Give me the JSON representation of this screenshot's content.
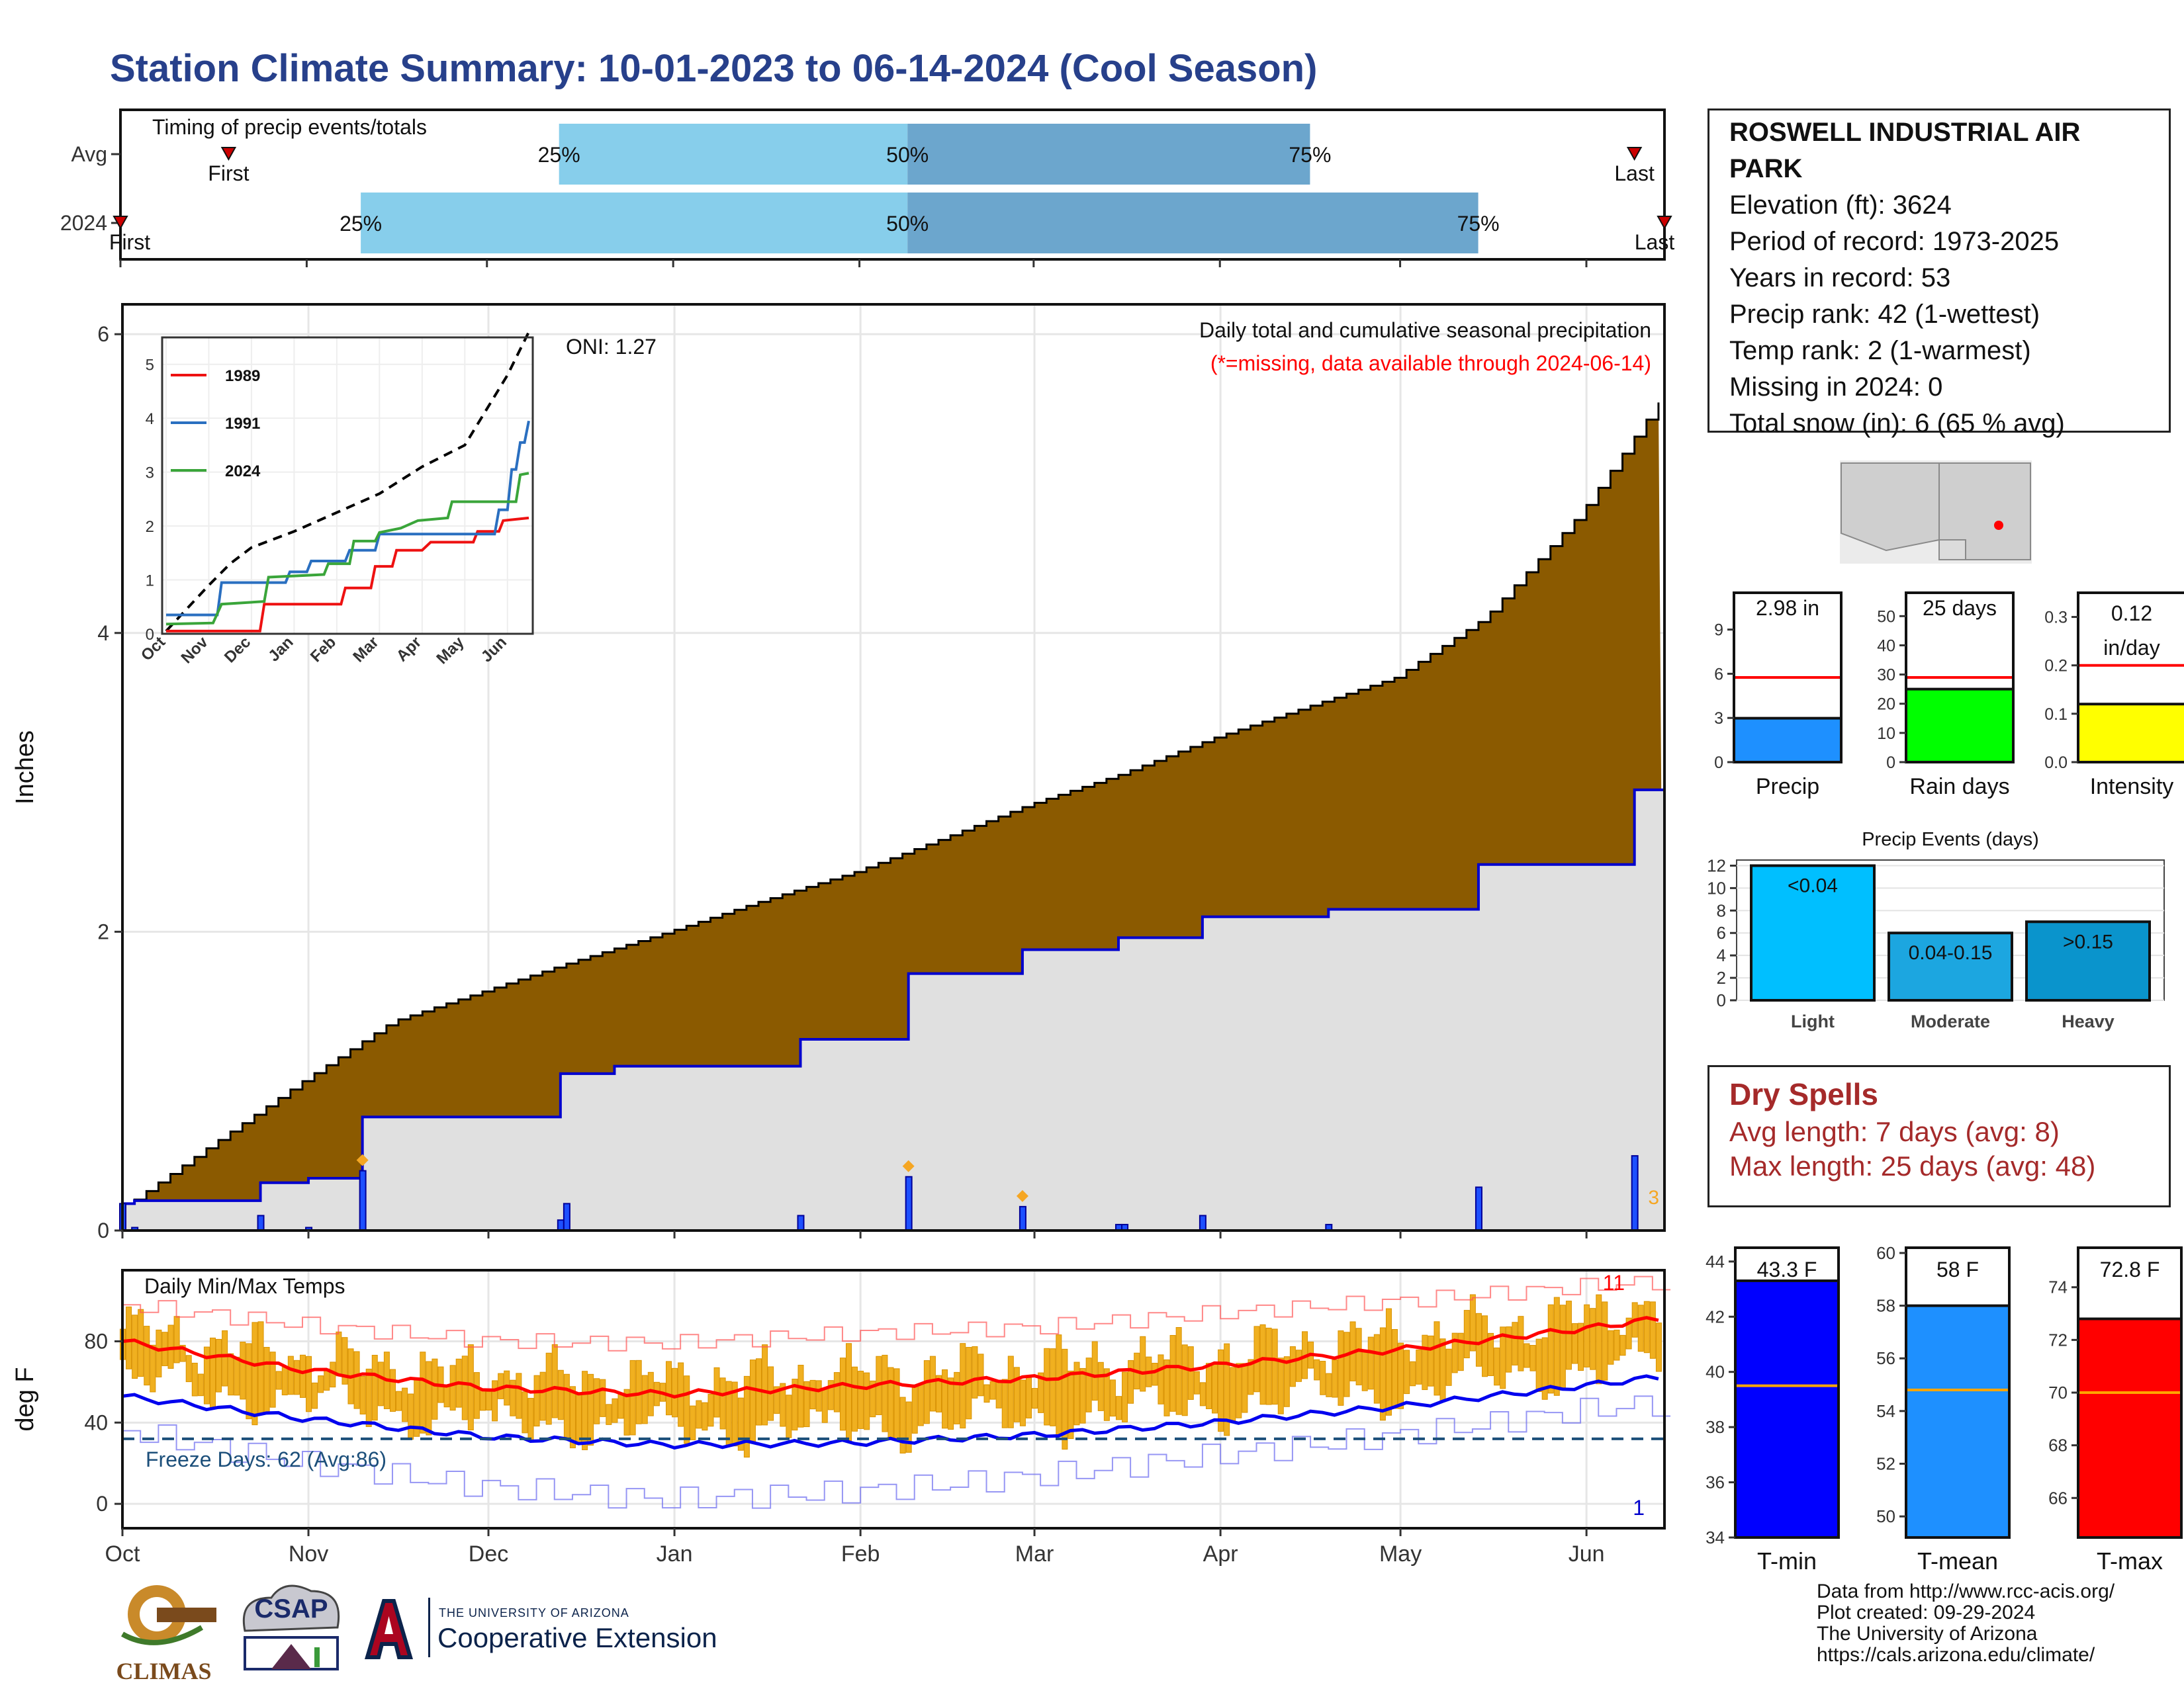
{
  "title": "Station Climate Summary: 10-01-2023 to 06-14-2024 (Cool Season)",
  "station": {
    "name": "ROSWELL INDUSTRIAL AIR PARK",
    "lines": [
      "Elevation (ft): 3624",
      "Period of record: 1973-2025",
      "Years in record: 53",
      "Precip rank: 42 (1-wettest)",
      "Temp rank: 2 (1-warmest)",
      "Missing in 2024: 0",
      "Total snow (in): 6 (65 % avg)"
    ]
  },
  "dry_spells": {
    "heading": "Dry Spells",
    "avg": "Avg length: 7 days (avg: 8)",
    "max": "Max length: 25 days (avg: 48)"
  },
  "credits": [
    "Data from http://www.rcc-acis.org/",
    "Plot created: 09-29-2024",
    "The University of Arizona",
    "https://cals.arizona.edu/climate/"
  ],
  "logos": {
    "climas": "CLIMAS",
    "csap": "CSAP",
    "ua_small": "THE UNIVERSITY OF ARIZONA",
    "ua_big": "Cooperative Extension"
  },
  "colors": {
    "title": "#27408b",
    "cum_avg_fill": "#8b5a00",
    "cum_2024_line": "#0000cd",
    "cum_2024_fill": "#e0e0e0",
    "daily_precip": "#1e50ff",
    "temp_bar": "#f0b020",
    "avg_max": "#ff0000",
    "avg_min": "#0000ee",
    "dry_spells": "#a52a2a",
    "timing_light": "#87ceeb",
    "timing_dark": "#6ca6cd"
  },
  "chart_data": [
    {
      "id": "timing",
      "type": "bar",
      "title": "Timing of precip events/totals",
      "rows": [
        {
          "label": "Avg",
          "first_date": "2023-10-19",
          "p25_date": "2023-12-13",
          "p50_date": "2024-02-09",
          "p75_date": "2024-04-16",
          "last_date": "2024-06-09"
        },
        {
          "label": "2024",
          "first_date": "2023-10-01",
          "p25_date": "2023-11-10",
          "p50_date": "2024-02-09",
          "p75_date": "2024-05-14",
          "last_date": "2024-06-14"
        }
      ],
      "marker_labels": {
        "first": "First",
        "last": "Last",
        "p25": "25%",
        "p50": "50%",
        "p75": "75%"
      }
    },
    {
      "id": "precip",
      "type": "area",
      "title": "Daily total and cumulative seasonal precipitation",
      "subtitle": "(*=missing, data available through 2024-06-14)",
      "ylabel": "Inches",
      "ylim": [
        0,
        6.2
      ],
      "yticks": [
        0,
        2,
        4,
        6
      ],
      "xlim": [
        "2023-10-01",
        "2024-06-14"
      ],
      "x_tick_labels": [
        "Oct",
        "Nov",
        "Dec",
        "Jan",
        "Feb",
        "Mar",
        "Apr",
        "May",
        "Jun"
      ],
      "oni": "ONI: 1.27",
      "corner_label": "3",
      "cumulative_avg": {
        "x": [
          "2023-10-01",
          "2023-10-15",
          "2023-10-31",
          "2023-11-15",
          "2023-11-30",
          "2023-12-15",
          "2023-12-31",
          "2024-01-15",
          "2024-01-31",
          "2024-02-15",
          "2024-02-29",
          "2024-03-15",
          "2024-03-31",
          "2024-04-15",
          "2024-04-30",
          "2024-05-15",
          "2024-05-31",
          "2024-06-14"
        ],
        "y": [
          0.15,
          0.55,
          1.0,
          1.4,
          1.6,
          1.8,
          2.0,
          2.2,
          2.4,
          2.63,
          2.85,
          3.05,
          3.3,
          3.5,
          3.7,
          4.1,
          4.8,
          5.6
        ]
      },
      "cumulative_2024": {
        "x": [
          "2023-10-01",
          "2023-10-03",
          "2023-10-24",
          "2023-11-01",
          "2023-11-10",
          "2023-12-13",
          "2023-12-22",
          "2024-01-22",
          "2024-02-09",
          "2024-02-28",
          "2024-03-15",
          "2024-03-29",
          "2024-04-19",
          "2024-05-14",
          "2024-06-09",
          "2024-06-14"
        ],
        "y": [
          0.18,
          0.2,
          0.32,
          0.35,
          0.76,
          1.05,
          1.1,
          1.28,
          1.72,
          1.88,
          1.96,
          2.1,
          2.15,
          2.45,
          2.95,
          2.98
        ]
      },
      "daily_2024": {
        "x": [
          "2023-10-01",
          "2023-10-03",
          "2023-10-24",
          "2023-11-01",
          "2023-11-10",
          "2023-12-13",
          "2023-12-14",
          "2024-01-22",
          "2024-02-09",
          "2024-02-28",
          "2024-03-15",
          "2024-03-16",
          "2024-03-29",
          "2024-04-19",
          "2024-05-14",
          "2024-06-09"
        ],
        "y": [
          0.18,
          0.02,
          0.1,
          0.02,
          0.4,
          0.07,
          0.18,
          0.1,
          0.36,
          0.16,
          0.04,
          0.04,
          0.1,
          0.04,
          0.29,
          0.5
        ]
      },
      "trace_days": [
        "2023-11-10",
        "2024-02-09",
        "2024-02-28"
      ],
      "inset": {
        "type": "line",
        "ylim": [
          0,
          5.5
        ],
        "yticks": [
          0,
          1,
          2,
          3,
          4,
          5
        ],
        "x_tick_labels": [
          "Oct",
          "Nov",
          "Dec",
          "Jan",
          "Feb",
          "Mar",
          "Apr",
          "May",
          "Jun"
        ],
        "series": [
          {
            "name": "1989",
            "color": "#ee1111",
            "points": [
              [
                0,
                0.05
              ],
              [
                2.2,
                0.05
              ],
              [
                2.3,
                0.55
              ],
              [
                4.1,
                0.55
              ],
              [
                4.2,
                0.85
              ],
              [
                4.8,
                0.85
              ],
              [
                4.9,
                1.25
              ],
              [
                5.3,
                1.25
              ],
              [
                5.4,
                1.55
              ],
              [
                6.0,
                1.55
              ],
              [
                6.2,
                1.7
              ],
              [
                7.2,
                1.7
              ],
              [
                7.3,
                1.9
              ],
              [
                7.8,
                1.9
              ],
              [
                7.9,
                2.1
              ],
              [
                8.5,
                2.15
              ]
            ]
          },
          {
            "name": "1991",
            "color": "#2a6fc0",
            "points": [
              [
                0,
                0.35
              ],
              [
                1.2,
                0.35
              ],
              [
                1.3,
                0.95
              ],
              [
                2.8,
                0.95
              ],
              [
                2.9,
                1.15
              ],
              [
                3.3,
                1.15
              ],
              [
                3.4,
                1.35
              ],
              [
                4.2,
                1.35
              ],
              [
                4.3,
                1.55
              ],
              [
                4.9,
                1.55
              ],
              [
                5.0,
                1.85
              ],
              [
                7.7,
                1.85
              ],
              [
                7.8,
                2.3
              ],
              [
                8.0,
                2.3
              ],
              [
                8.1,
                3.05
              ],
              [
                8.2,
                3.05
              ],
              [
                8.3,
                3.55
              ],
              [
                8.4,
                3.55
              ],
              [
                8.5,
                3.95
              ]
            ]
          },
          {
            "name": "2024",
            "color": "#3aa53a",
            "points": [
              [
                0,
                0.18
              ],
              [
                1.1,
                0.2
              ],
              [
                1.3,
                0.55
              ],
              [
                2.3,
                0.6
              ],
              [
                2.4,
                1.05
              ],
              [
                3.7,
                1.1
              ],
              [
                3.8,
                1.3
              ],
              [
                4.3,
                1.3
              ],
              [
                4.4,
                1.72
              ],
              [
                4.9,
                1.72
              ],
              [
                5.0,
                1.88
              ],
              [
                5.5,
                1.96
              ],
              [
                5.9,
                2.1
              ],
              [
                6.6,
                2.15
              ],
              [
                6.7,
                2.45
              ],
              [
                8.2,
                2.45
              ],
              [
                8.3,
                2.95
              ],
              [
                8.5,
                2.98
              ]
            ]
          }
        ],
        "average_dashed": [
          [
            0,
            0.05
          ],
          [
            1,
            0.9
          ],
          [
            1.5,
            1.3
          ],
          [
            2,
            1.6
          ],
          [
            3,
            1.9
          ],
          [
            4,
            2.25
          ],
          [
            5,
            2.6
          ],
          [
            6,
            3.1
          ],
          [
            7,
            3.5
          ],
          [
            8,
            4.8
          ],
          [
            8.5,
            5.6
          ]
        ]
      }
    },
    {
      "id": "temps",
      "type": "bar",
      "title": "Daily Min/Max Temps",
      "ylabel": "deg F",
      "ylim": [
        -12,
        115
      ],
      "yticks": [
        0,
        40,
        80
      ],
      "xlim": [
        "2023-10-01",
        "2024-06-14"
      ],
      "x_tick_labels": [
        "Oct",
        "Nov",
        "Dec",
        "Jan",
        "Feb",
        "Mar",
        "Apr",
        "May",
        "Jun"
      ],
      "freeze_line": 32,
      "freeze_label": "Freeze Days: 62 (Avg:86)",
      "corner_min_label": "1",
      "corner_max_label": "11",
      "avg_max": {
        "x": [
          0,
          30,
          61,
          91,
          122,
          153,
          182,
          213,
          243,
          258
        ],
        "y": [
          80,
          66,
          57,
          54,
          58,
          62,
          68,
          76,
          86,
          92
        ]
      },
      "avg_min": {
        "x": [
          0,
          30,
          61,
          91,
          122,
          153,
          182,
          213,
          243,
          258
        ],
        "y": [
          53,
          42,
          33,
          29,
          30,
          34,
          40,
          48,
          58,
          63
        ]
      },
      "record_max": {
        "x": [
          0,
          30,
          61,
          91,
          122,
          153,
          182,
          213,
          243,
          258
        ],
        "y": [
          98,
          88,
          80,
          79,
          84,
          87,
          94,
          100,
          107,
          110
        ]
      },
      "record_min": {
        "x": [
          0,
          30,
          61,
          91,
          122,
          153,
          182,
          213,
          243,
          258
        ],
        "y": [
          36,
          20,
          8,
          2,
          6,
          14,
          24,
          34,
          46,
          50
        ]
      }
    },
    {
      "id": "season_bars",
      "type": "bar",
      "charts": [
        {
          "label": "Precip",
          "value": 2.98,
          "display": "2.98 in",
          "avg": 5.75,
          "ylim": [
            0,
            11.5
          ],
          "yticks": [
            0,
            3,
            6,
            9
          ],
          "color": "#1e90ff"
        },
        {
          "label": "Rain days",
          "value": 25,
          "display": "25 days",
          "avg": 29,
          "ylim": [
            0,
            58
          ],
          "yticks": [
            0,
            10,
            20,
            30,
            40,
            50
          ],
          "color": "#00ff00"
        },
        {
          "label": "Intensity",
          "value": 0.12,
          "display": "0.12 in/day",
          "avg": 0.2,
          "ylim": [
            0,
            0.35
          ],
          "yticks": [
            0.0,
            0.1,
            0.2,
            0.3
          ],
          "yticklabels": [
            "0.0",
            "0.1",
            "0.2",
            "0.3"
          ],
          "color": "#ffff00"
        }
      ]
    },
    {
      "id": "precip_events",
      "type": "bar",
      "title": "Precip Events (days)",
      "categories": [
        "Light",
        "Moderate",
        "Heavy"
      ],
      "bar_labels": [
        "<0.04",
        "0.04-0.15",
        ">0.15"
      ],
      "values": [
        12,
        6,
        7
      ],
      "ylim": [
        0,
        12.5
      ],
      "yticks": [
        0,
        2,
        4,
        6,
        8,
        10,
        12
      ],
      "colors": [
        "#00bfff",
        "#1ca6e0",
        "#0a94cc"
      ]
    },
    {
      "id": "temp_summary",
      "type": "bar",
      "charts": [
        {
          "label": "T-min",
          "value": 43.3,
          "display": "43.3 F",
          "avg": 39.5,
          "ylim": [
            34,
            44.5
          ],
          "yticks": [
            34,
            36,
            38,
            40,
            42,
            44
          ],
          "color": "#0000ff"
        },
        {
          "label": "T-mean",
          "value": 58,
          "display": "58 F",
          "avg": 54.8,
          "ylim": [
            49.2,
            60.2
          ],
          "yticks": [
            50,
            52,
            54,
            56,
            58,
            60
          ],
          "color": "#1e90ff"
        },
        {
          "label": "T-max",
          "value": 72.8,
          "display": "72.8 F",
          "avg": 70,
          "ylim": [
            64.5,
            75.5
          ],
          "yticks": [
            66,
            68,
            70,
            72,
            74
          ],
          "color": "#ff0000"
        }
      ]
    }
  ]
}
